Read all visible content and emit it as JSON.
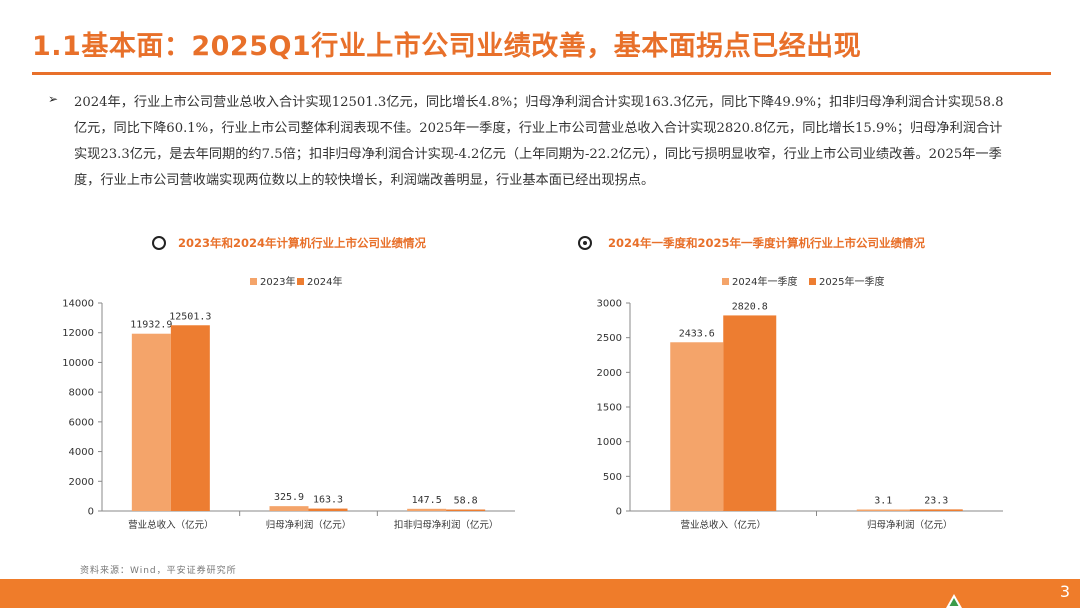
{
  "slide": {
    "title": "1.1基本面：2025Q1行业上市公司业绩改善，基本面拐点已经出现",
    "bullet_symbol": "➢",
    "paragraph": "2024年，行业上市公司营业总收入合计实现12501.3亿元，同比增长4.8%；归母净利润合计实现163.3亿元，同比下降49.9%；扣非归母净利润合计实现58.8亿元，同比下降60.1%，行业上市公司整体利润表现不佳。2025年一季度，行业上市公司营业总收入合计实现2820.8亿元，同比增长15.9%；归母净利润合计实现23.3亿元，是去年同期的约7.5倍；扣非归母净利润合计实现-4.2亿元（上年同期为-22.2亿元），同比亏损明显收窄，行业上市公司业绩改善。2025年一季度，行业上市公司营收端实现两位数以上的较快增长，利润端改善明显，行业基本面已经出现拐点。",
    "source": "资料来源：Wind，平安证券研究所",
    "page_number": "3"
  },
  "colors": {
    "accent": "#e8702a",
    "series_light": "#f4a46a",
    "series_dark": "#ed7d31",
    "footer": "#ef7c2a"
  },
  "chart_data": [
    {
      "type": "bar",
      "title": "2023年和2024年计算机行业上市公司业绩情况",
      "categories": [
        "营业总收入（亿元）",
        "归母净利润（亿元）",
        "扣非归母净利润（亿元）"
      ],
      "series": [
        {
          "name": "2023年",
          "values": [
            11932.9,
            325.9,
            147.5
          ]
        },
        {
          "name": "2024年",
          "values": [
            12501.3,
            163.3,
            58.8
          ]
        }
      ],
      "data_labels": [
        [
          "11932.9",
          "325.9",
          "147.5"
        ],
        [
          "12501.3",
          "163.3",
          "58.8"
        ]
      ],
      "ylim": [
        0,
        14000
      ],
      "yticks": [
        0,
        2000,
        4000,
        6000,
        8000,
        10000,
        12000,
        14000
      ],
      "ytick_labels": [
        "0",
        "2000",
        "4000",
        "6000",
        "8000",
        "10000",
        "12000",
        "14000"
      ],
      "legend_position": "top",
      "grid": false
    },
    {
      "type": "bar",
      "title": "2024年一季度和2025年一季度计算机行业上市公司业绩情况",
      "categories": [
        "营业总收入（亿元）",
        "归母净利润（亿元）"
      ],
      "series": [
        {
          "name": "2024年一季度",
          "values": [
            2433.6,
            3.1
          ]
        },
        {
          "name": "2025年一季度",
          "values": [
            2820.8,
            23.3
          ]
        }
      ],
      "data_labels": [
        [
          "2433.6",
          "3.1"
        ],
        [
          "2820.8",
          "23.3"
        ]
      ],
      "ylim": [
        0,
        3000
      ],
      "yticks": [
        0,
        500,
        1000,
        1500,
        2000,
        2500,
        3000
      ],
      "ytick_labels": [
        "0",
        "500",
        "1000",
        "1500",
        "2000",
        "2500",
        "3000"
      ],
      "legend_position": "top",
      "grid": false
    }
  ]
}
